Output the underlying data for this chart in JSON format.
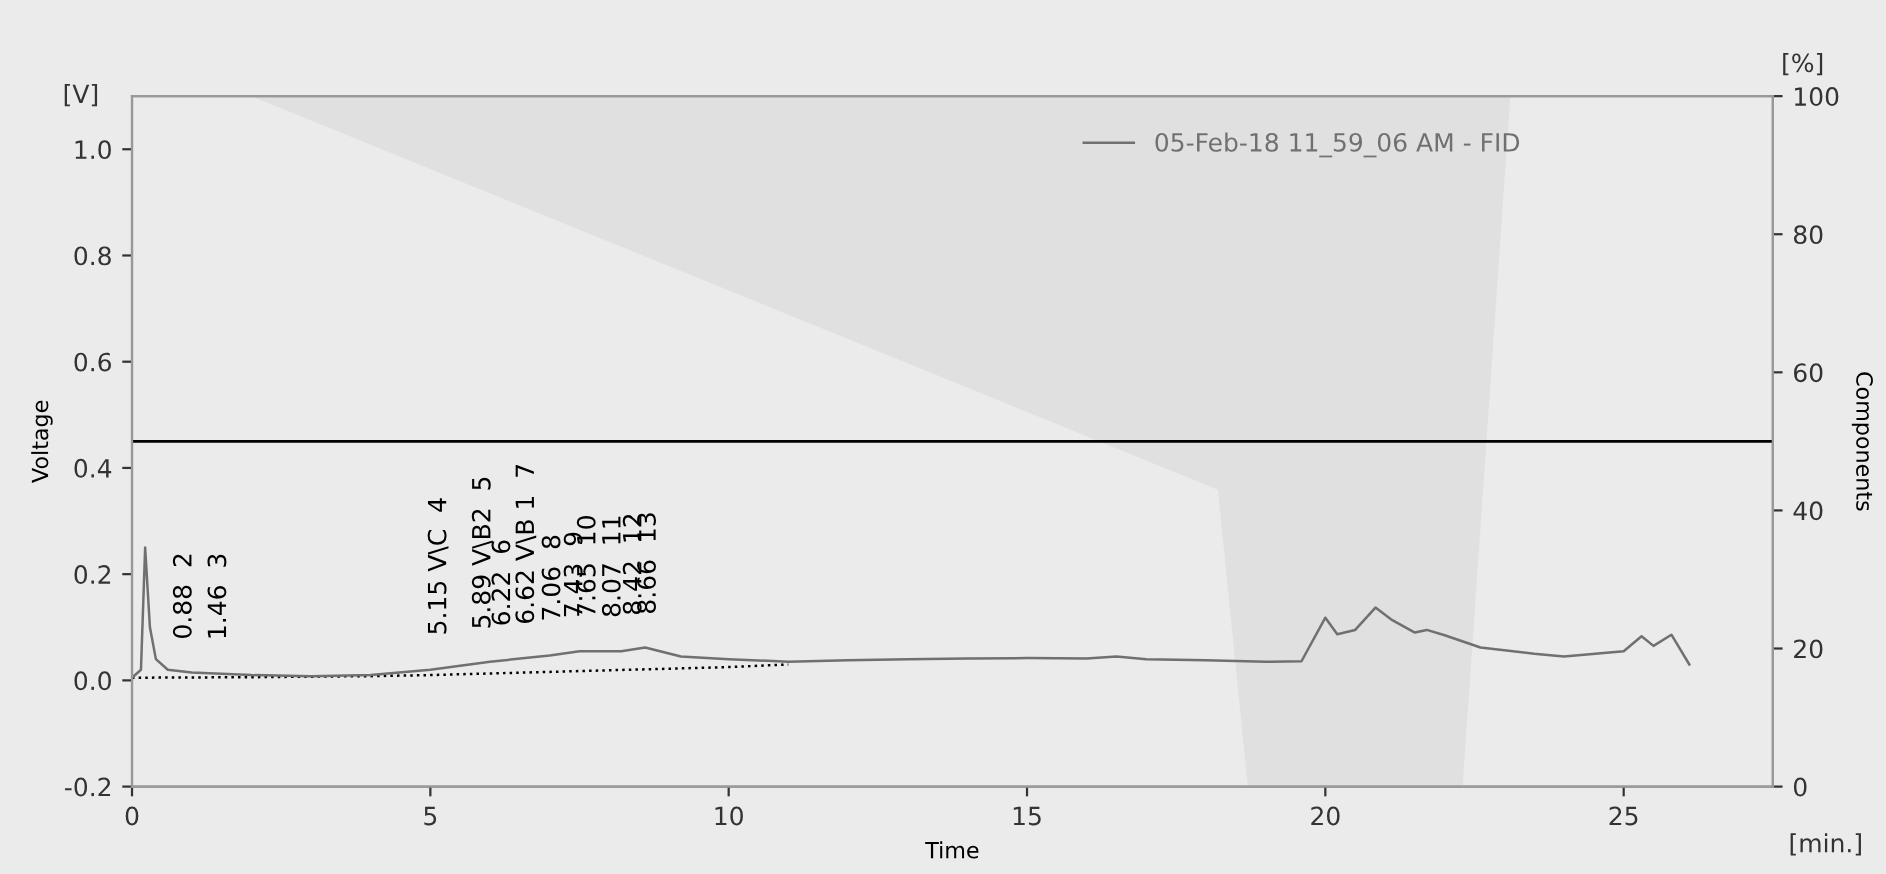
{
  "chart_data": {
    "type": "line",
    "xlabel": "Time",
    "ylabel": "Voltage",
    "y2label": "Components",
    "xlim": [
      0,
      27.5
    ],
    "xticks": [
      0,
      5,
      10,
      15,
      20,
      25
    ],
    "ylim": [
      -0.2,
      1.1
    ],
    "yticks": [
      -0.2,
      {
        "value": 0,
        "label": "0.0"
      },
      0.2,
      0.4,
      0.6,
      0.8,
      {
        "value": 1,
        "label": "1.0"
      }
    ],
    "y2lim": [
      0,
      100
    ],
    "y2ticks": [
      0,
      20,
      40,
      60,
      80,
      100
    ],
    "grid": false,
    "legend": "top right",
    "marker": "none",
    "series": [
      {
        "type": "area",
        "axis": "y2",
        "color": "#e0e0e0",
        "x": [
          2,
          18.2,
          18.7,
          22.3,
          23.1
        ],
        "values": [
          100,
          43,
          0,
          0,
          100
        ]
      },
      {
        "type": "line",
        "line_style": "dotted",
        "color": "#000000",
        "x": [
          0,
          2,
          4,
          5,
          6,
          7,
          8,
          9,
          10,
          11
        ],
        "values": [
          0.005,
          0.006,
          0.008,
          0.01,
          0.013,
          0.016,
          0.019,
          0.022,
          0.025,
          0.03
        ]
      },
      {
        "type": "line",
        "name": "05-Feb-18 11_59_06 AM - FID",
        "line_style": "solid",
        "color": "#707070",
        "x": [
          0.0,
          0.15,
          0.22,
          0.3,
          0.4,
          0.6,
          1.0,
          2,
          3,
          4,
          5,
          6,
          7,
          7.5,
          8.2,
          8.6,
          9.2,
          10,
          11,
          12,
          13,
          14,
          15,
          16,
          16.5,
          17,
          18,
          19,
          19.6,
          20.0,
          20.2,
          20.5,
          20.84,
          21.1,
          21.5,
          21.7,
          22.0,
          22.6,
          23.5,
          24,
          25,
          25.3,
          25.5,
          25.8,
          26.1
        ],
        "values": [
          0.005,
          0.02,
          0.25,
          0.1,
          0.04,
          0.02,
          0.015,
          0.01,
          0.008,
          0.01,
          0.02,
          0.035,
          0.047,
          0.055,
          0.055,
          0.062,
          0.045,
          0.04,
          0.035,
          0.038,
          0.04,
          0.041,
          0.042,
          0.041,
          0.045,
          0.04,
          0.038,
          0.035,
          0.036,
          0.118,
          0.087,
          0.095,
          0.137,
          0.115,
          0.09,
          0.095,
          0.085,
          0.062,
          0.05,
          0.045,
          0.055,
          0.083,
          0.065,
          0.086,
          0.03
        ]
      }
    ],
    "ref_lines": [
      {
        "axis": "y",
        "value": 0.45,
        "color": "#000000"
      }
    ],
    "annotations": [
      "[V]",
      "[%]",
      "[min.]",
      {
        "text": "0.88  2",
        "x": 0.88,
        "y": 0.014
      },
      {
        "text": "1.46  3",
        "x": 1.46,
        "y": 0.013
      },
      {
        "text": "5.15 V\\C  4",
        "x": 5.15,
        "y": 0.022
      },
      {
        "text": "5.89 V\\B2  5",
        "x": 5.89,
        "y": 0.033
      },
      {
        "text": "6.22  6",
        "x": 6.22,
        "y": 0.039
      },
      {
        "text": "6.62 V\\B 1  7",
        "x": 6.62,
        "y": 0.042
      },
      {
        "text": "7.06  8",
        "x": 7.06,
        "y": 0.048
      },
      {
        "text": "7.43  9",
        "x": 7.43,
        "y": 0.054
      },
      {
        "text": "7.65  10",
        "x": 7.65,
        "y": 0.055
      },
      {
        "text": "8.07  11",
        "x": 8.07,
        "y": 0.055
      },
      {
        "text": "8.42  12",
        "x": 8.42,
        "y": 0.059
      },
      {
        "text": "8.66  13",
        "x": 8.66,
        "y": 0.061
      }
    ]
  }
}
